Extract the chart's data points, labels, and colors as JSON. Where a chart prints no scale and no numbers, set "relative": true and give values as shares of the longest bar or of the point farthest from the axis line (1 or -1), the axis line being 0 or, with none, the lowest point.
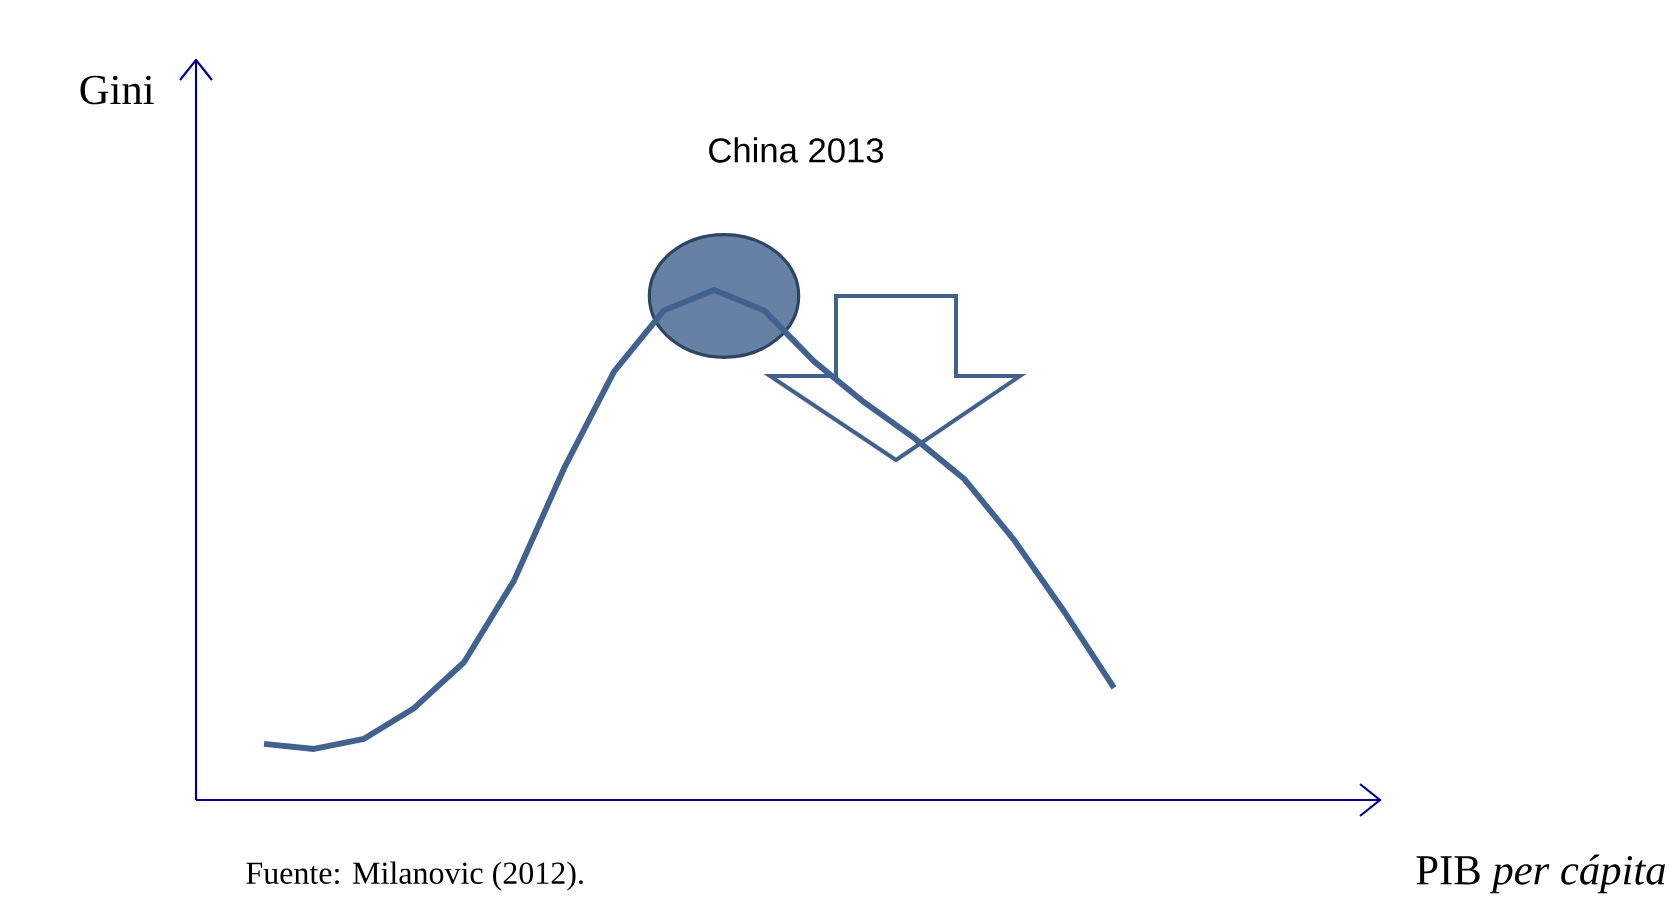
{
  "chart_data": {
    "type": "line",
    "relative": true,
    "ylabel": "Gini",
    "categories": [
      null,
      null,
      null,
      null,
      null,
      null,
      null,
      null,
      null,
      null,
      null,
      null,
      null,
      null,
      null,
      null,
      null,
      null
    ],
    "series": [
      {
        "color": "#41628f",
        "values": [
          0.11,
          0.1,
          0.12,
          0.18,
          0.27,
          0.43,
          0.65,
          0.84,
          0.96,
          1.0,
          0.96,
          0.86,
          0.78,
          0.71,
          0.63,
          0.51,
          0.37,
          0.22
        ]
      }
    ],
    "annotations": [
      "China 2013",
      "Fuente: Milanovic (2012).",
      "PIB *per cápita*"
    ]
  }
}
